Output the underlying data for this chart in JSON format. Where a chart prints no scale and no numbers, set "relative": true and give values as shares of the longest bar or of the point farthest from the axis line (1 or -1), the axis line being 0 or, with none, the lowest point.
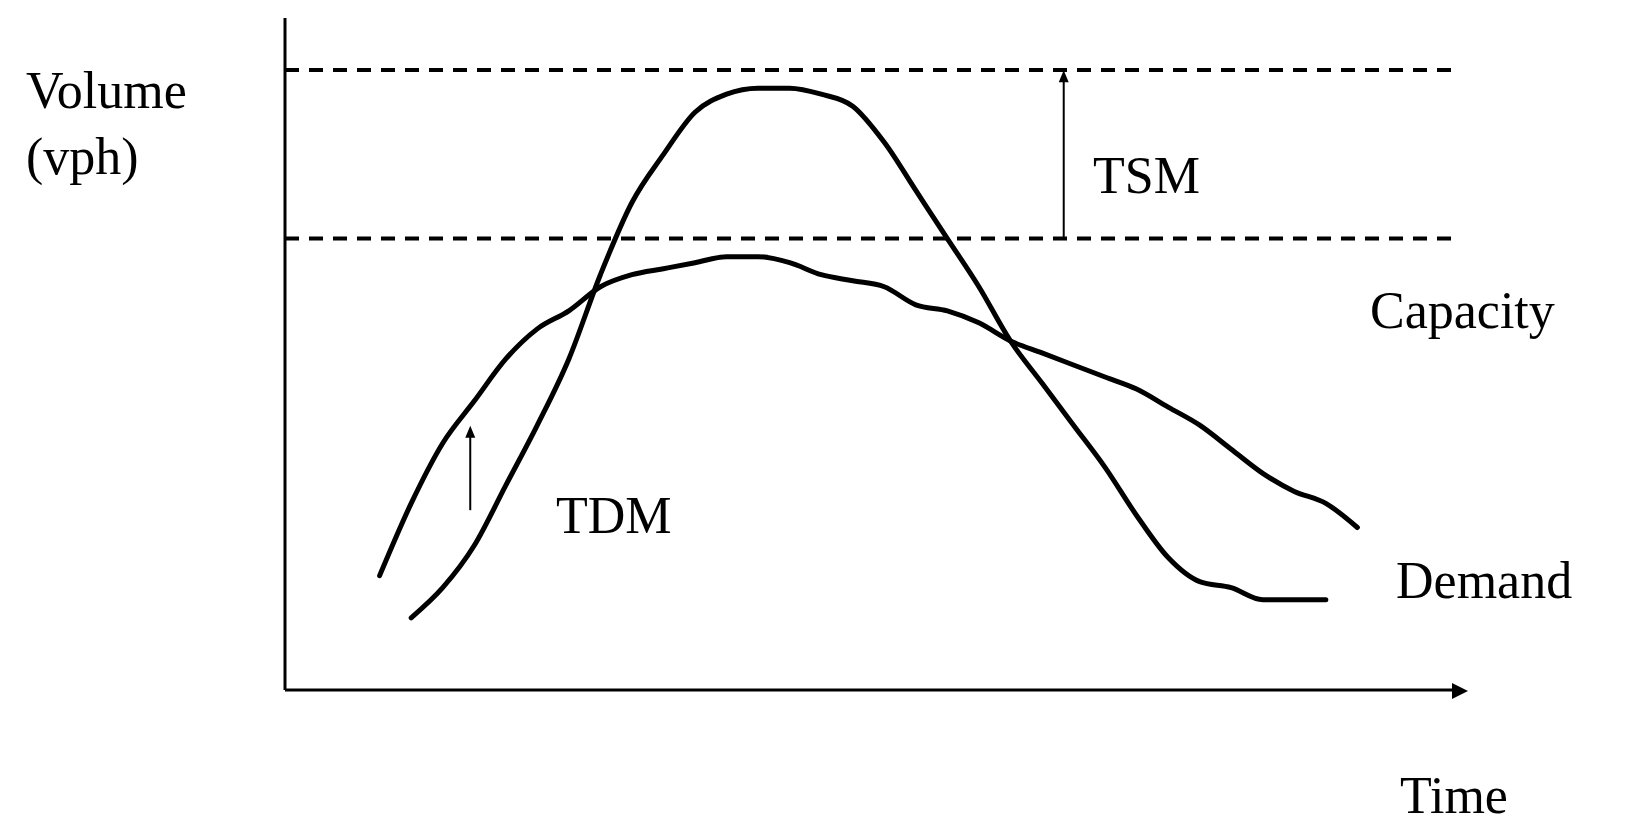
{
  "chart_data": {
    "type": "line",
    "relative": true,
    "xlabel": "Time",
    "ylabel": "Volume (vph)",
    "categories": [
      null,
      null,
      null,
      null,
      null,
      null,
      null,
      null,
      null,
      null,
      null,
      null,
      null,
      null,
      null,
      null,
      null,
      null,
      null,
      null,
      null,
      null,
      null,
      null,
      null,
      null,
      null,
      null,
      null,
      null,
      null,
      null,
      null,
      null,
      null,
      null,
      null,
      null
    ],
    "series": [
      {
        "color": "#000000",
        "values": [
          null,
          null,
          null,
          null,
          0.12,
          0.17,
          0.24,
          0.34,
          0.44,
          0.55,
          0.69,
          0.81,
          0.89,
          0.96,
          0.99,
          1.0,
          1.0,
          0.99,
          0.97,
          0.91,
          0.83,
          0.75,
          0.67,
          0.58,
          0.51,
          0.44,
          0.37,
          0.29,
          0.22,
          0.18,
          0.17,
          0.15,
          0.15,
          0.15,
          null,
          null,
          null,
          null
        ]
      },
      {
        "color": "#000000",
        "values": [
          null,
          null,
          null,
          0.19,
          0.31,
          0.41,
          0.48,
          0.55,
          0.6,
          0.63,
          0.67,
          0.69,
          0.7,
          0.71,
          0.72,
          0.72,
          0.71,
          0.69,
          0.68,
          0.67,
          0.64,
          0.63,
          0.61,
          0.58,
          0.56,
          0.54,
          0.52,
          0.5,
          0.47,
          0.44,
          0.4,
          0.36,
          0.33,
          0.31,
          0.27,
          null,
          null,
          null
        ]
      }
    ],
    "ref_lines": [
      {
        "axis": "y",
        "value": 1.03,
        "color": "#000000",
        "line_style": "dashed"
      },
      {
        "axis": "y",
        "value": 0.75,
        "color": "#000000",
        "line_style": "dashed"
      }
    ],
    "annotations": [
      "TSM",
      "Capacity",
      "TDM",
      "Demand"
    ],
    "grid": false,
    "marker": "none",
    "line_style": "solid"
  }
}
